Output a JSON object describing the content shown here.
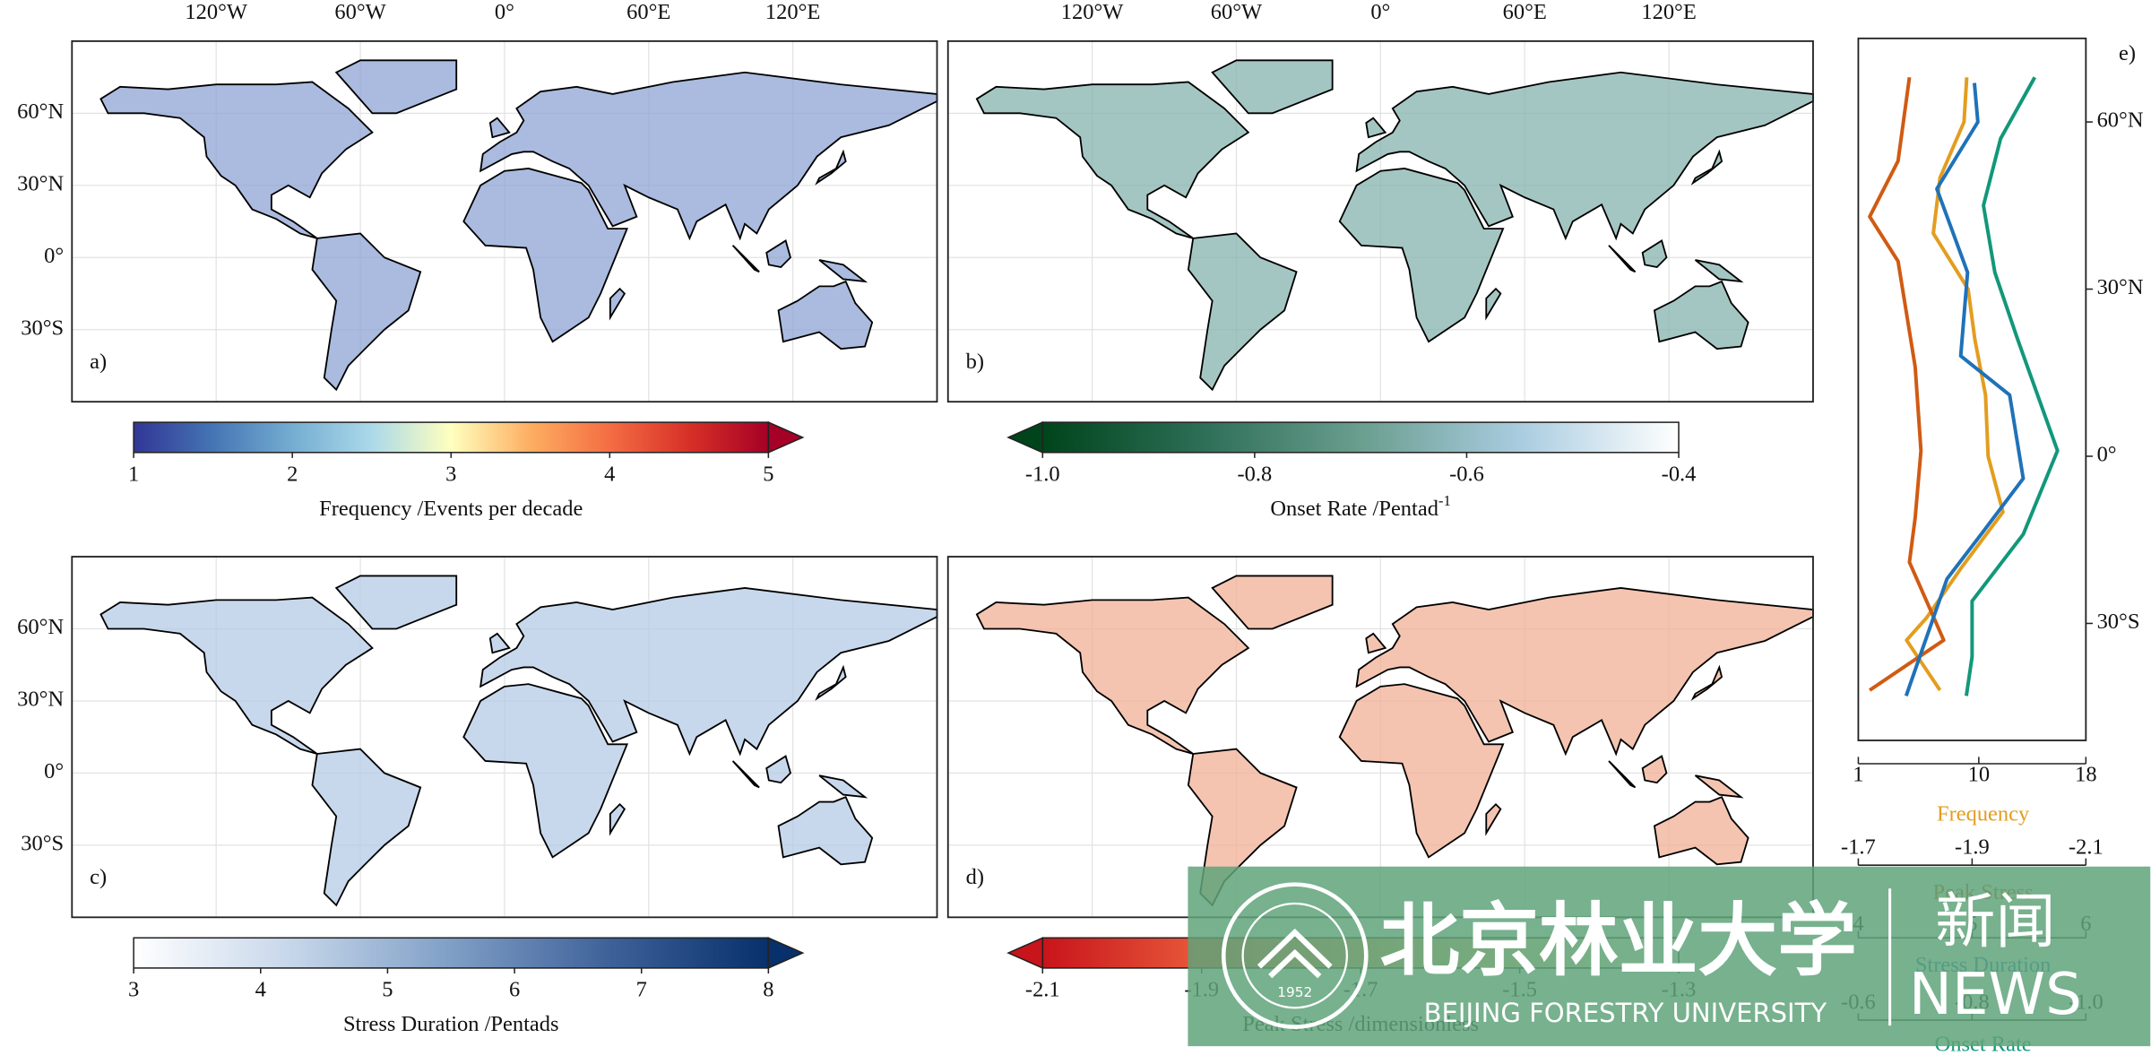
{
  "map_axes": {
    "lon_ticks": [
      {
        "value": -120,
        "label": "120°W"
      },
      {
        "value": -60,
        "label": "60°W"
      },
      {
        "value": 0,
        "label": "0°"
      },
      {
        "value": 60,
        "label": "60°E"
      },
      {
        "value": 120,
        "label": "120°E"
      }
    ],
    "lat_ticks": [
      {
        "value": 60,
        "label": "60°N"
      },
      {
        "value": 30,
        "label": "30°N"
      },
      {
        "value": 0,
        "label": "0°"
      },
      {
        "value": -30,
        "label": "30°S"
      }
    ],
    "lonlim": [
      -180,
      180
    ],
    "latlim": [
      -60,
      90
    ]
  },
  "maps": [
    {
      "label": "a)",
      "fill": "#8da4d4",
      "colorbar": {
        "label": "Frequency /Events per decade",
        "lim": [
          1,
          5
        ],
        "ticks": [
          1,
          2,
          3,
          4,
          5
        ],
        "extend": "max",
        "colors": [
          "#313695",
          "#4575b4",
          "#74add1",
          "#abd9e9",
          "#ffffbf",
          "#fdae61",
          "#f46d43",
          "#d73027",
          "#a50026"
        ]
      }
    },
    {
      "label": "b)",
      "fill": "#86b3ad",
      "colorbar": {
        "label": "Onset Rate /Pentad",
        "superscript": "-1",
        "lim": [
          -1,
          -0.4
        ],
        "ticks": [
          {
            "value": -1,
            "label": "-1.0"
          },
          -0.8,
          -0.6,
          -0.4
        ],
        "extend": "min",
        "colors": [
          "#00441b",
          "#2d6e57",
          "#6a9e8f",
          "#a9cce0",
          "#ffffff"
        ]
      }
    },
    {
      "label": "c)",
      "fill": "#b6cbe6",
      "colorbar": {
        "label": "Stress Duration /Pentads",
        "lim": [
          3,
          8
        ],
        "ticks": [
          3,
          4,
          5,
          6,
          7,
          8
        ],
        "extend": "max",
        "colors": [
          "#ffffff",
          "#c6d6ea",
          "#7f9fc6",
          "#3e6199",
          "#08306b"
        ]
      }
    },
    {
      "label": "d)",
      "fill": "#f0b096",
      "colorbar": {
        "label": "Peak Stress /dimensionless",
        "lim": [
          -2.1,
          -1.3
        ],
        "ticks": [
          -2.1,
          -1.9,
          -1.7,
          -1.5,
          -1.3
        ],
        "extend": "min",
        "colors": [
          "#c8141b",
          "#e8593a",
          "#f6a46c",
          "#fbe0a6",
          "#ffffff"
        ]
      }
    }
  ],
  "chart_data": {
    "type": "line",
    "label": "e)",
    "ylim": [
      -51,
      75
    ],
    "yticks": [
      {
        "value": 60,
        "label": "60°N"
      },
      {
        "value": 30,
        "label": "30°N"
      },
      {
        "value": 0,
        "label": "0°"
      },
      {
        "value": -30,
        "label": "30°S"
      }
    ],
    "series": [
      {
        "name": "Frequency",
        "color": "#e39d1f",
        "xlim": [
          1,
          18
        ],
        "xticks": [
          1,
          10,
          18
        ],
        "y": [
          68,
          60,
          50,
          40,
          30,
          21,
          11,
          0,
          -10,
          -20,
          -29,
          -33,
          -42
        ],
        "values": [
          9.1,
          8.9,
          7.1,
          6.6,
          9.2,
          9.7,
          10.5,
          10.7,
          11.8,
          8.7,
          6.1,
          4.6,
          7.1
        ]
      },
      {
        "name": "Peak Stress",
        "color": "#d15a13",
        "xlim": [
          -1.7,
          -2.1
        ],
        "xticks": [
          -1.7,
          -1.9,
          -2.1
        ],
        "y": [
          68,
          53,
          43,
          35,
          16,
          1,
          -11,
          -19,
          -33,
          -42
        ],
        "values": [
          -1.79,
          -1.77,
          -1.72,
          -1.77,
          -1.8,
          -1.81,
          -1.8,
          -1.79,
          -1.85,
          -1.72
        ]
      },
      {
        "name": "Stress Duration",
        "color": "#1f72b8",
        "xlim": [
          4,
          6
        ],
        "xticks": [
          4,
          5,
          6
        ],
        "y": [
          67,
          60,
          48,
          33,
          18,
          11,
          -4,
          -14,
          -22,
          -36,
          -43
        ],
        "values": [
          5.02,
          5.05,
          4.69,
          4.96,
          4.9,
          5.33,
          5.45,
          5.08,
          4.78,
          4.54,
          4.42
        ]
      },
      {
        "name": "Onset Rate",
        "color": "#12977a",
        "xlim": [
          -0.6,
          -1
        ],
        "xticks": [
          -0.6,
          -0.8,
          {
            "value": -1,
            "label": "-1.0"
          }
        ],
        "y": [
          68,
          57,
          45,
          33,
          21,
          1,
          -14,
          -26,
          -36,
          -43
        ],
        "values": [
          -0.91,
          -0.85,
          -0.82,
          -0.84,
          -0.88,
          -0.95,
          -0.89,
          -0.8,
          -0.8,
          -0.79
        ]
      }
    ]
  },
  "watermark": {
    "name": "北京林业大学",
    "english": "BEIJING FORESTRY UNIVERSITY",
    "year": "1952",
    "news_cn": "新闻",
    "news_en": "NEWS"
  }
}
